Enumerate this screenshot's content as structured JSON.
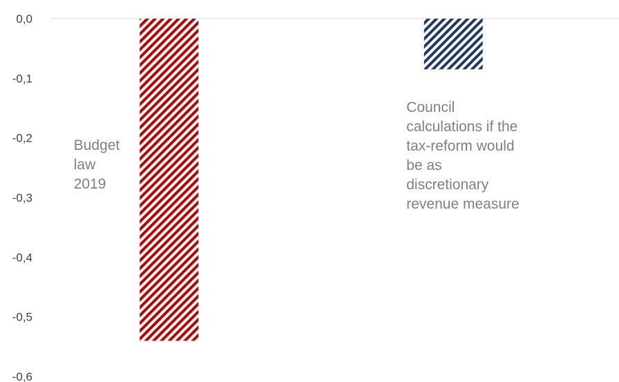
{
  "chart_data": {
    "type": "bar",
    "categories": [
      "Budget law 2019",
      "Council calculations if the tax-reform would be as discretionary revenue measure"
    ],
    "values": [
      -0.54,
      -0.085
    ],
    "ylim": [
      -0.6,
      0.0
    ],
    "yticks": [
      "0,0",
      "-0,1",
      "-0,2",
      "-0,3",
      "-0,4",
      "-0,5",
      "-0,6"
    ],
    "grid": false,
    "bar_colors": [
      "#c00000",
      "#1f3864"
    ],
    "bar_pattern": "diagonal-hatch",
    "annotations": [
      {
        "lines": [
          "Budget",
          "law",
          "2019"
        ]
      },
      {
        "lines": [
          "Council",
          "calculations if the",
          "tax-reform would",
          "be as",
          "discretionary",
          "revenue measure"
        ]
      }
    ]
  }
}
